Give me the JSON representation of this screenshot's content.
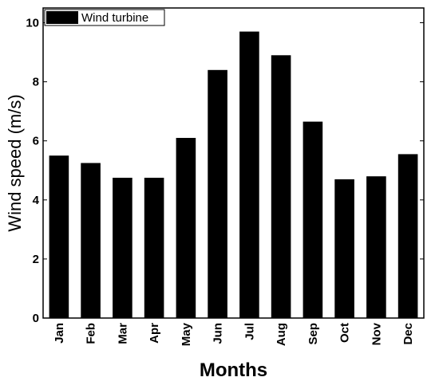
{
  "chart_data": {
    "type": "bar",
    "categories": [
      "Jan",
      "Feb",
      "Mar",
      "Apr",
      "May",
      "Jun",
      "Jul",
      "Aug",
      "Sep",
      "Oct",
      "Nov",
      "Dec"
    ],
    "series": [
      {
        "name": "Wind turbine",
        "values": [
          5.5,
          5.25,
          4.75,
          4.75,
          6.1,
          8.4,
          9.7,
          8.9,
          6.65,
          4.7,
          4.8,
          5.55
        ],
        "color": "#000000"
      }
    ],
    "xlabel": "Months",
    "ylabel": "Wind speed (m/s)",
    "ylim": [
      0,
      10.5
    ],
    "yticks": [
      0,
      2,
      4,
      6,
      8,
      10
    ],
    "grid": false,
    "legend_position": "top-left"
  }
}
